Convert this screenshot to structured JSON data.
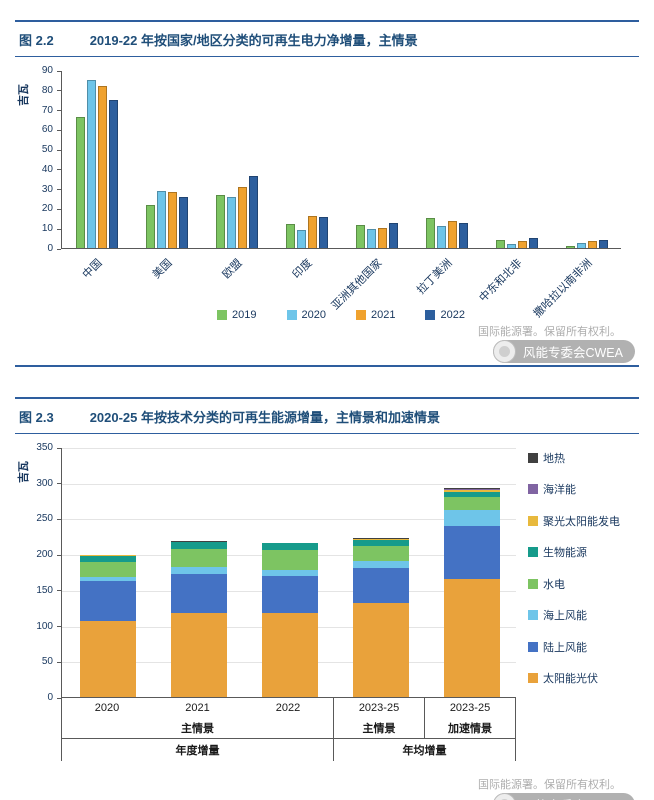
{
  "page": {
    "watermark_copyright": "国际能源署。保留所有权利。",
    "watermark_badge": "风能专委会CWEA"
  },
  "figures": [
    {
      "tag": "图 2.2",
      "title": "2019-22 年按国家/地区分类的可再生电力净增量，主情景"
    },
    {
      "tag": "图 2.3",
      "title": "2020-25 年按技术分类的可再生能源增量，主情景和加速情景"
    }
  ],
  "chart_data": [
    {
      "type": "bar",
      "stacked": false,
      "title": "2019-22 年按国家/地区分类的可再生电力净增量，主情景",
      "xlabel": "",
      "ylabel": "吉瓦",
      "ylim": [
        0,
        90
      ],
      "ytick_step": 10,
      "grid": false,
      "legend_position": "bottom",
      "categories": [
        "中国",
        "美国",
        "欧盟",
        "印度",
        "亚洲其他国家",
        "拉丁美洲",
        "中东和北非",
        "撒哈拉以南非洲"
      ],
      "series": [
        {
          "name": "2019",
          "color": "#7dc462",
          "values": [
            66,
            22,
            27,
            12,
            11.5,
            15,
            4,
            1
          ]
        },
        {
          "name": "2020",
          "color": "#6ec5e9",
          "values": [
            85,
            29,
            26,
            9,
            9.5,
            11,
            2,
            2.5
          ]
        },
        {
          "name": "2021",
          "color": "#f0a22e",
          "values": [
            82,
            28.5,
            31,
            16,
            10,
            13.5,
            3.5,
            3.5
          ]
        },
        {
          "name": "2022",
          "color": "#2d5f9e",
          "values": [
            75,
            26,
            36.5,
            15.5,
            12.5,
            12.5,
            5,
            4
          ]
        }
      ]
    },
    {
      "type": "bar",
      "stacked": true,
      "stack_order": "first-series-on-top",
      "title": "2020-25 年按技术分类的可再生能源增量，主情景和加速情景",
      "xlabel": "",
      "ylabel": "吉瓦",
      "ylim": [
        0,
        350
      ],
      "ytick_step": 50,
      "grid": true,
      "legend_position": "right",
      "categories": [
        "2020",
        "2021",
        "2022",
        "2023-25",
        "2023-25"
      ],
      "series": [
        {
          "name": "地热",
          "color": "#404040",
          "values": [
            0.5,
            0.5,
            0.5,
            1,
            2
          ]
        },
        {
          "name": "海洋能",
          "color": "#8064a2",
          "values": [
            0,
            0,
            0,
            0.5,
            1.5
          ]
        },
        {
          "name": "聚光太阳能发电",
          "color": "#e8b93d",
          "values": [
            0.5,
            0.5,
            0.5,
            1,
            2.5
          ]
        },
        {
          "name": "生物能源",
          "color": "#169b8b",
          "values": [
            9,
            10,
            9,
            9,
            7
          ]
        },
        {
          "name": "水电",
          "color": "#7dc462",
          "values": [
            21,
            25,
            28,
            20,
            18
          ]
        },
        {
          "name": "海上风能",
          "color": "#6ec5e9",
          "values": [
            6,
            10,
            8,
            10,
            22
          ]
        },
        {
          "name": "陆上风能",
          "color": "#4472c4",
          "values": [
            55,
            55,
            52,
            50,
            75
          ]
        },
        {
          "name": "太阳能光伏",
          "color": "#e9a23b",
          "values": [
            107,
            117,
            118,
            131,
            165
          ]
        }
      ],
      "xaxis_groups": {
        "scenarios": [
          {
            "label": "主情景",
            "span": 3
          },
          {
            "label": "主情景",
            "span": 1
          },
          {
            "label": "加速情景",
            "span": 1
          }
        ],
        "aggregates": [
          {
            "label": "年度增量",
            "span": 3
          },
          {
            "label": "年均增量",
            "span": 2
          }
        ]
      }
    }
  ]
}
